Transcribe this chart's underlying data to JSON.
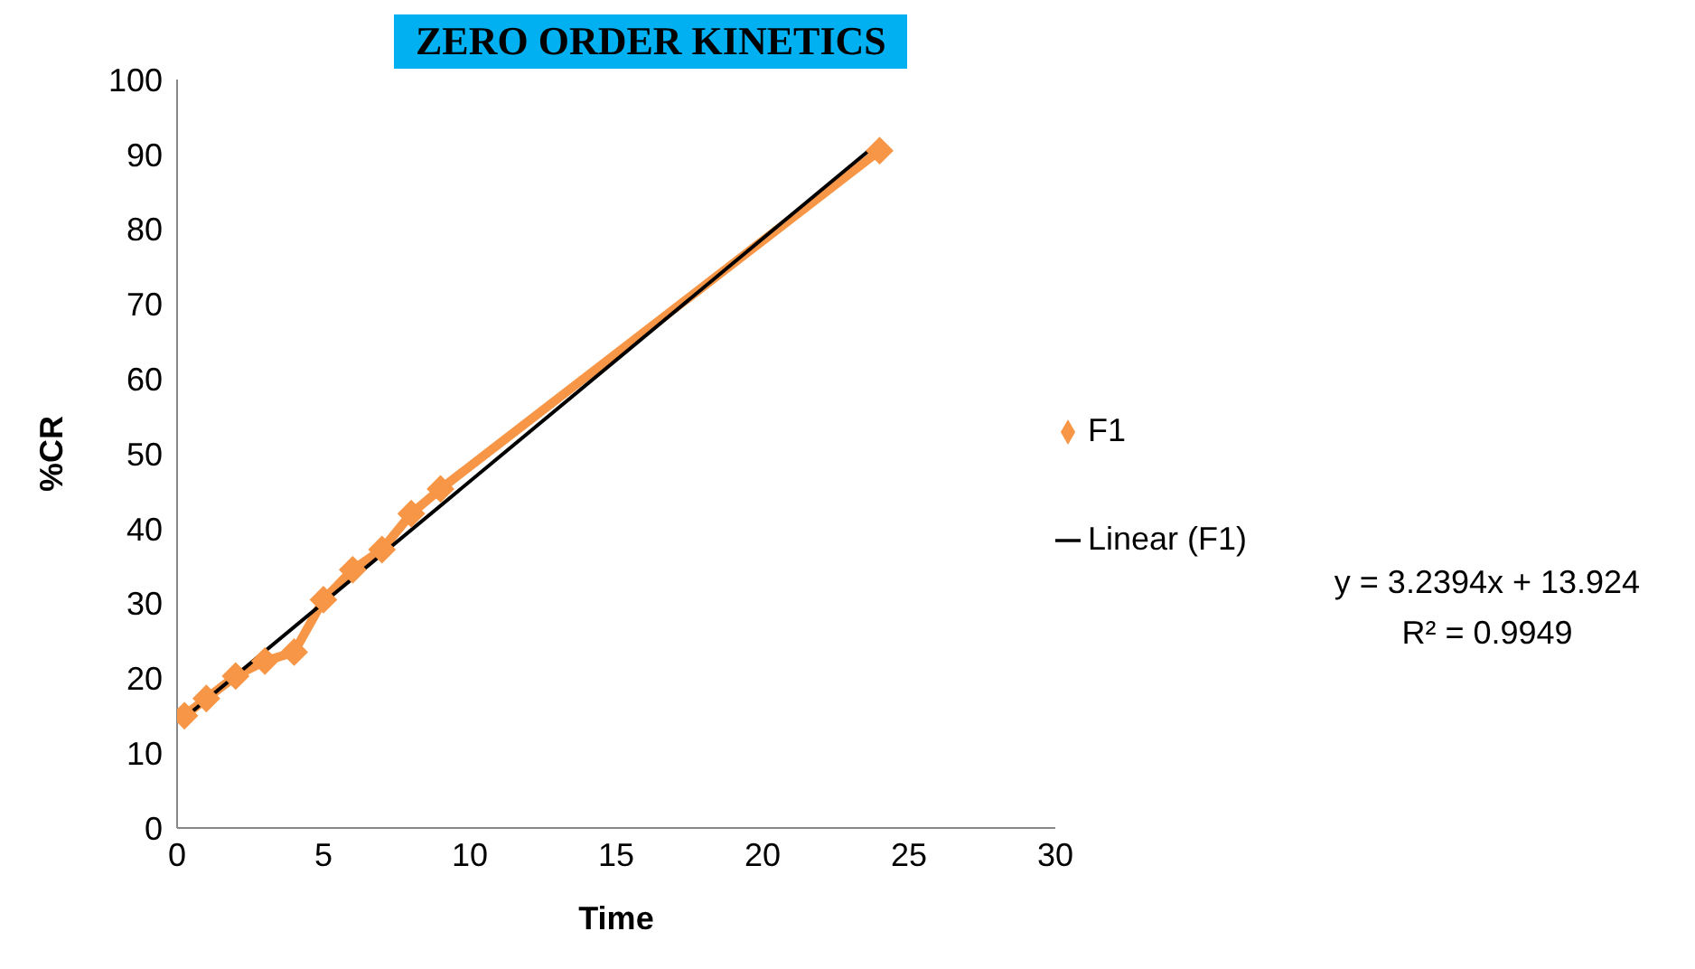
{
  "chart_data": {
    "type": "line",
    "title": "ZERO ORDER KINETICS",
    "xlabel": "Time",
    "ylabel": "%CR",
    "xlim": [
      0,
      30
    ],
    "xticks": [
      0,
      5,
      10,
      15,
      20,
      25,
      30
    ],
    "ylim": [
      0,
      100
    ],
    "yticks": [
      0,
      10,
      20,
      30,
      40,
      50,
      60,
      70,
      80,
      90,
      100
    ],
    "grid": false,
    "legend": "right",
    "series": [
      {
        "name": "F1",
        "color": "#f79646",
        "marker": "diamond",
        "x": [
          0.25,
          1,
          2,
          3,
          4,
          5,
          6,
          7,
          8,
          9,
          24
        ],
        "values": [
          15,
          17.3,
          20.3,
          22.3,
          23.5,
          30.5,
          34.5,
          37.2,
          42,
          45.3,
          90.5
        ]
      },
      {
        "name": "Linear (F1)",
        "color": "#000000",
        "marker": "none",
        "x": [
          0.25,
          24
        ],
        "values": [
          14.7,
          91.7
        ]
      }
    ],
    "annotations": [
      "y = 3.2394x + 13.924",
      "R² = 0.9949"
    ]
  }
}
